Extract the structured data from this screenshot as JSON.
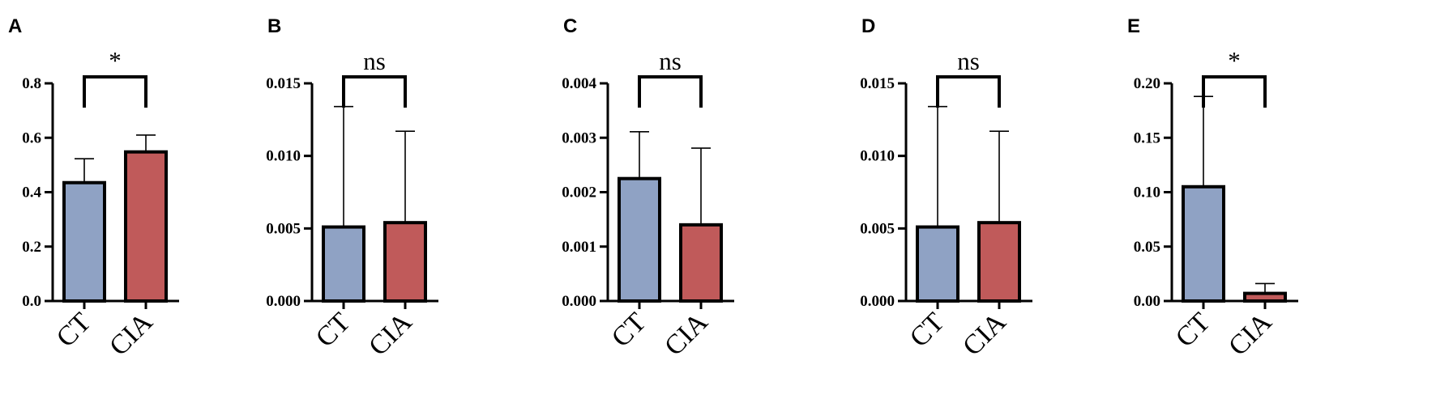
{
  "colors": {
    "ct": "#8fa2c4",
    "cia": "#c05a5a",
    "stroke": "#000000"
  },
  "chart_data": [
    {
      "type": "bar",
      "panel": "A",
      "categories": [
        "CT",
        "CIA"
      ],
      "values": [
        0.435,
        0.548
      ],
      "errors": [
        0.088,
        0.062
      ],
      "ylim": [
        0,
        0.8
      ],
      "ticks": [
        0.0,
        0.2,
        0.4,
        0.6,
        0.8
      ],
      "tick_labels": [
        "0.0",
        "0.2",
        "0.4",
        "0.6",
        "0.8"
      ],
      "significance": "*"
    },
    {
      "type": "bar",
      "panel": "B",
      "categories": [
        "CT",
        "CIA"
      ],
      "values": [
        0.0051,
        0.0054
      ],
      "errors": [
        0.0083,
        0.0063
      ],
      "ylim": [
        0,
        0.015
      ],
      "ticks": [
        0.0,
        0.005,
        0.01,
        0.015
      ],
      "tick_labels": [
        "0.000",
        "0.005",
        "0.010",
        "0.015"
      ],
      "significance": "ns"
    },
    {
      "type": "bar",
      "panel": "C",
      "categories": [
        "CT",
        "CIA"
      ],
      "values": [
        0.00225,
        0.0014
      ],
      "errors": [
        0.00086,
        0.00141
      ],
      "ylim": [
        0,
        0.004
      ],
      "ticks": [
        0.0,
        0.001,
        0.002,
        0.003,
        0.004
      ],
      "tick_labels": [
        "0.000",
        "0.001",
        "0.002",
        "0.003",
        "0.004"
      ],
      "significance": "ns"
    },
    {
      "type": "bar",
      "panel": "D",
      "categories": [
        "CT",
        "CIA"
      ],
      "values": [
        0.0051,
        0.0054
      ],
      "errors": [
        0.0083,
        0.0063
      ],
      "ylim": [
        0,
        0.015
      ],
      "ticks": [
        0.0,
        0.005,
        0.01,
        0.015
      ],
      "tick_labels": [
        "0.000",
        "0.005",
        "0.010",
        "0.015"
      ],
      "significance": "ns"
    },
    {
      "type": "bar",
      "panel": "E",
      "categories": [
        "CT",
        "CIA"
      ],
      "values": [
        0.105,
        0.007
      ],
      "errors": [
        0.083,
        0.009
      ],
      "ylim": [
        0,
        0.2
      ],
      "ticks": [
        0.0,
        0.05,
        0.1,
        0.15,
        0.2
      ],
      "tick_labels": [
        "0.00",
        "0.05",
        "0.10",
        "0.15",
        "0.20"
      ],
      "significance": "*"
    }
  ]
}
